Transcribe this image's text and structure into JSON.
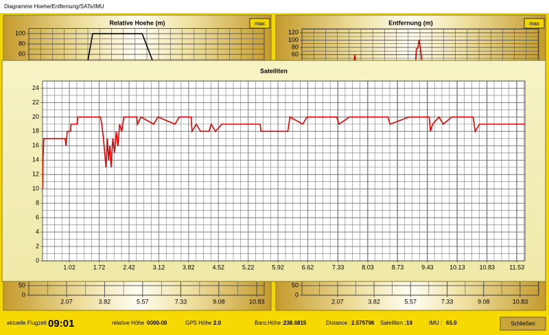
{
  "window": {
    "title": "Diagramme  Hoehe/Entfernung/SATs/IMU"
  },
  "chart_data": [
    {
      "type": "line",
      "title": "Relative Hoehe (m)",
      "button": "max",
      "color": "#000000",
      "x": [
        2.85,
        3.27,
        5.55,
        6.47
      ],
      "values": [
        0,
        100,
        100,
        0
      ],
      "xlim": [
        0.33,
        11.17
      ],
      "ylim": [
        0,
        110
      ],
      "yticks": [
        60,
        80,
        100
      ],
      "y_minor": 2,
      "grid": true
    },
    {
      "type": "line",
      "title": "Entfernung (m)",
      "button": "max",
      "color": "#e00000",
      "x": [
        0.36,
        2.8,
        2.9,
        2.97,
        5.8,
        5.85,
        5.92,
        5.98,
        6.05,
        6.15,
        11.72
      ],
      "values": [
        0,
        20,
        59,
        20,
        25,
        75,
        78,
        101,
        75,
        25,
        20
      ],
      "xlim": [
        0.36,
        11.72
      ],
      "ylim": [
        0,
        131
      ],
      "yticks": [
        60,
        80,
        100,
        120
      ],
      "y_minor": 2,
      "grid": true
    },
    {
      "type": "line",
      "xlim": [
        0.33,
        11.17
      ],
      "ylim": [
        0,
        200
      ],
      "yticks": [
        0,
        50
      ],
      "xticks": [
        2.07,
        3.82,
        5.57,
        7.33,
        9.08,
        10.83
      ],
      "x_minor": 2,
      "grid": true
    },
    {
      "type": "line",
      "xlim": [
        0.36,
        11.72
      ],
      "ylim": [
        0,
        200
      ],
      "yticks": [
        0,
        50
      ],
      "xticks": [
        2.07,
        3.82,
        5.57,
        7.33,
        9.08,
        10.83
      ],
      "x_minor": 2,
      "grid": true
    },
    {
      "type": "line",
      "title": "Satelliten",
      "color": "#e00000",
      "x": [
        0.39,
        0.4,
        0.42,
        0.92,
        0.94,
        0.97,
        1.05,
        1.06,
        1.2,
        1.22,
        1.75,
        1.78,
        1.82,
        1.85,
        1.88,
        1.91,
        1.94,
        1.97,
        2.0,
        2.04,
        2.08,
        2.12,
        2.16,
        2.2,
        2.25,
        2.3,
        2.6,
        2.62,
        2.7,
        3.0,
        3.1,
        3.5,
        3.6,
        3.88,
        3.9,
        4.0,
        4.1,
        4.3,
        4.35,
        4.45,
        4.6,
        5.5,
        5.52,
        6.15,
        6.2,
        6.5,
        6.6,
        7.3,
        7.35,
        7.6,
        8.5,
        8.55,
        9.0,
        9.47,
        9.5,
        9.55,
        9.7,
        9.8,
        10.0,
        10.5,
        10.55,
        10.65,
        11.72
      ],
      "values": [
        10,
        14,
        17,
        17,
        16,
        18,
        18,
        19,
        19,
        20,
        20,
        19,
        17,
        15,
        13,
        17,
        14,
        16,
        13,
        17,
        15,
        18,
        16,
        19,
        18,
        20,
        20,
        19,
        20,
        19,
        20,
        19,
        20,
        20,
        18,
        19,
        18,
        18,
        19,
        18,
        19,
        19,
        18,
        18,
        20,
        19,
        20,
        20,
        19,
        20,
        20,
        19,
        20,
        20,
        18,
        19,
        20,
        19,
        20,
        20,
        18,
        19,
        19
      ],
      "xlim": [
        0.39,
        11.72
      ],
      "ylim": [
        0,
        25
      ],
      "yticks": [
        0,
        2,
        4,
        6,
        8,
        10,
        12,
        14,
        16,
        18,
        20,
        22,
        24
      ],
      "xticks": [
        1.02,
        1.72,
        2.42,
        3.12,
        3.82,
        4.52,
        5.22,
        5.92,
        6.62,
        7.33,
        8.03,
        8.73,
        9.43,
        10.13,
        10.83,
        11.53
      ],
      "x_minor": 4,
      "y_minor": 2,
      "grid": true
    }
  ],
  "status": {
    "flight_time_label": "aktuelle Flugzeit :",
    "flight_time": "09:01",
    "rel_height_label": "relative Höhe",
    "rel_height": "0000-00",
    "gps_label": "GPS Höhe :",
    "gps": "2.0",
    "baro_label": "Baro.Höhe :",
    "baro": "238.6815",
    "distance_label": "Distance :",
    "distance": "2.575796",
    "sat_label": "Satelliten :",
    "sat": "19",
    "imu_label": "IMU :",
    "imu": "65.0",
    "close_button": "Schließen"
  }
}
